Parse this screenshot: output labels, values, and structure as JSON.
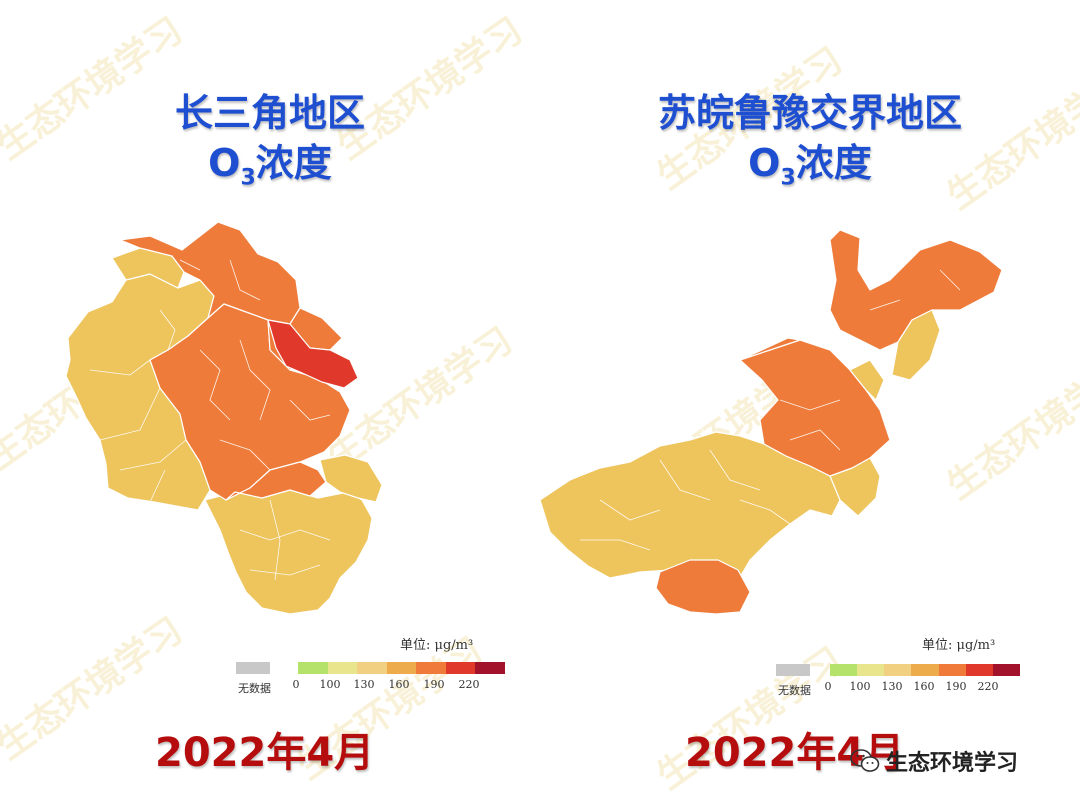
{
  "watermark_text": "生态环境学习",
  "left": {
    "title_line1": "长三角地区",
    "title_o": "O",
    "title_sub": "3",
    "title_rest": "浓度",
    "date": "2022年4月"
  },
  "right": {
    "title_line1": "苏皖鲁豫交界地区",
    "title_o": "O",
    "title_sub": "3",
    "title_rest": "浓度",
    "date": "2022年4月"
  },
  "legend": {
    "unit": "单位: μg/m³",
    "nodata_label": "无数据",
    "nodata_color": "#c8c8c8",
    "ticks": [
      "0",
      "100",
      "130",
      "160",
      "190",
      "220"
    ],
    "colors": [
      "#b5e26a",
      "#e9e58c",
      "#f1d081",
      "#eeab4c",
      "#ef7a3a",
      "#e0392b",
      "#a3122b"
    ]
  },
  "map_colors": {
    "low": "#eec45d",
    "mid": "#ee7b3a",
    "high": "#e0392b"
  },
  "brand": {
    "label": "生态环境学习",
    "icon": "wechat-icon"
  }
}
